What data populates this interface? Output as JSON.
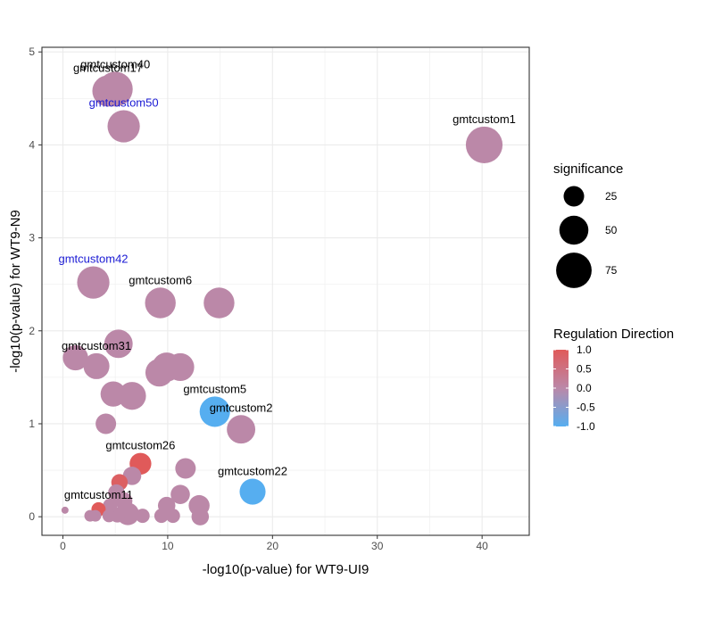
{
  "chart_data": {
    "type": "scatter",
    "xlabel": "-log10(p-value) for WT9-UI9",
    "ylabel": "-log10(p-value) for WT9-N9",
    "xlim": [
      -2,
      44.5
    ],
    "ylim": [
      -0.2,
      5.05
    ],
    "x_ticks": [
      0,
      10,
      20,
      30,
      40
    ],
    "y_ticks": [
      0,
      1,
      2,
      3,
      4,
      5
    ],
    "grid": true,
    "legend_placement": "right",
    "colors": {
      "up": "#e05a5a",
      "neutral": "#bb88a8",
      "down": "#56aef0",
      "highlight_label": "#1a1ad4"
    },
    "size_legend": {
      "title": "significance",
      "values": [
        25,
        50,
        75
      ]
    },
    "color_legend": {
      "title": "Regulation Direction",
      "values": [
        1.0,
        0.5,
        0.0,
        -0.5,
        -1.0
      ],
      "labels": [
        "1.0",
        "0.5",
        "0.0",
        "-0.5",
        "-1.0"
      ]
    },
    "points": [
      {
        "x": 40.2,
        "y": 4.0,
        "sig": 80,
        "dir": 0,
        "label": "gmtcustom1"
      },
      {
        "x": 5.0,
        "y": 4.6,
        "sig": 72,
        "dir": 0,
        "label": "gmtcustom40"
      },
      {
        "x": 4.3,
        "y": 4.58,
        "sig": 58,
        "dir": 0,
        "label": "gmtcustom17"
      },
      {
        "x": 5.8,
        "y": 4.2,
        "sig": 62,
        "dir": 0,
        "label": "gmtcustom50",
        "label_color": "blue"
      },
      {
        "x": 2.9,
        "y": 2.52,
        "sig": 62,
        "dir": 0,
        "label": "gmtcustom42",
        "label_color": "blue"
      },
      {
        "x": 9.3,
        "y": 2.3,
        "sig": 56,
        "dir": 0,
        "label": "gmtcustom6"
      },
      {
        "x": 14.9,
        "y": 2.3,
        "sig": 56,
        "dir": 0
      },
      {
        "x": 5.3,
        "y": 1.86,
        "sig": 48,
        "dir": 0
      },
      {
        "x": 1.2,
        "y": 1.71,
        "sig": 38,
        "dir": 0
      },
      {
        "x": 3.2,
        "y": 1.62,
        "sig": 40,
        "dir": 0,
        "label": "gmtcustom31"
      },
      {
        "x": 9.2,
        "y": 1.55,
        "sig": 46,
        "dir": 0
      },
      {
        "x": 9.9,
        "y": 1.61,
        "sig": 50,
        "dir": 0
      },
      {
        "x": 11.2,
        "y": 1.61,
        "sig": 46,
        "dir": 0
      },
      {
        "x": 4.8,
        "y": 1.32,
        "sig": 38,
        "dir": 0
      },
      {
        "x": 6.6,
        "y": 1.3,
        "sig": 46,
        "dir": 0
      },
      {
        "x": 14.5,
        "y": 1.13,
        "sig": 55,
        "dir": -1,
        "label": "gmtcustom5"
      },
      {
        "x": 17.0,
        "y": 0.94,
        "sig": 48,
        "dir": 0,
        "label": "gmtcustom2"
      },
      {
        "x": 4.1,
        "y": 1.0,
        "sig": 25,
        "dir": 0
      },
      {
        "x": 7.4,
        "y": 0.57,
        "sig": 28,
        "dir": 1,
        "label": "gmtcustom26"
      },
      {
        "x": 11.7,
        "y": 0.52,
        "sig": 25,
        "dir": 0
      },
      {
        "x": 6.6,
        "y": 0.44,
        "sig": 20,
        "dir": 0
      },
      {
        "x": 5.4,
        "y": 0.37,
        "sig": 16,
        "dir": 0.9
      },
      {
        "x": 18.1,
        "y": 0.27,
        "sig": 40,
        "dir": -1,
        "label": "gmtcustom22"
      },
      {
        "x": 11.2,
        "y": 0.24,
        "sig": 22,
        "dir": 0
      },
      {
        "x": 5.1,
        "y": 0.26,
        "sig": 16,
        "dir": 0
      },
      {
        "x": 5.8,
        "y": 0.17,
        "sig": 18,
        "dir": 0
      },
      {
        "x": 4.5,
        "y": 0.12,
        "sig": 12,
        "dir": 0
      },
      {
        "x": 9.9,
        "y": 0.12,
        "sig": 18,
        "dir": 0
      },
      {
        "x": 13.0,
        "y": 0.12,
        "sig": 26,
        "dir": 0
      },
      {
        "x": 3.4,
        "y": 0.08,
        "sig": 12,
        "dir": 1,
        "label": "gmtcustom11"
      },
      {
        "x": 6.2,
        "y": 0.03,
        "sig": 30,
        "dir": 0
      },
      {
        "x": 5.2,
        "y": 0.02,
        "sig": 14,
        "dir": 0
      },
      {
        "x": 4.4,
        "y": 0.01,
        "sig": 10,
        "dir": 0
      },
      {
        "x": 7.6,
        "y": 0.01,
        "sig": 12,
        "dir": 0
      },
      {
        "x": 9.4,
        "y": 0.01,
        "sig": 12,
        "dir": 0
      },
      {
        "x": 10.5,
        "y": 0.01,
        "sig": 12,
        "dir": 0
      },
      {
        "x": 13.1,
        "y": 0.0,
        "sig": 18,
        "dir": 0
      },
      {
        "x": 2.6,
        "y": 0.01,
        "sig": 8,
        "dir": 0
      },
      {
        "x": 3.1,
        "y": 0.01,
        "sig": 8,
        "dir": 0
      },
      {
        "x": 0.2,
        "y": 0.07,
        "sig": 3,
        "dir": 0
      }
    ]
  }
}
